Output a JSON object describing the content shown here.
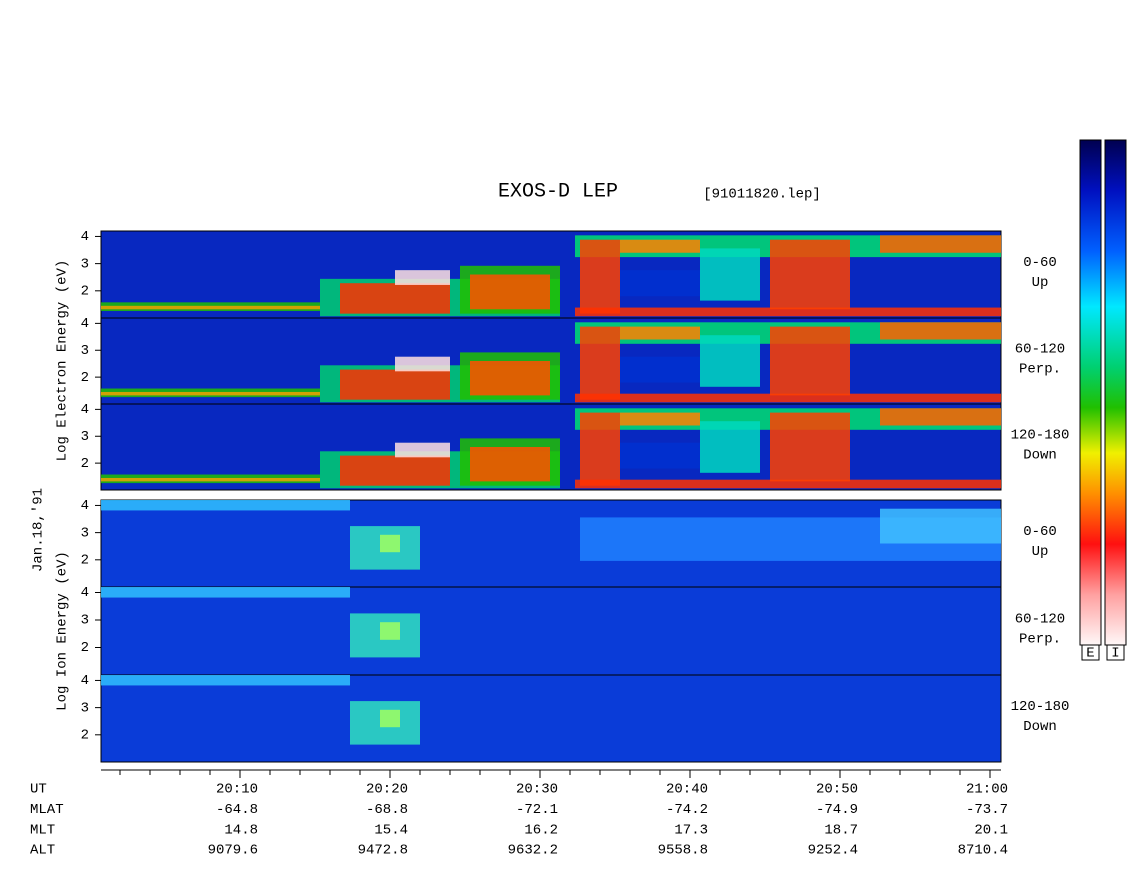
{
  "title": "EXOS-D LEP",
  "file": "[91011820.lep]",
  "date": "Jan.18,'91",
  "ylim": [
    1,
    4.2
  ],
  "yticks": [
    2,
    3,
    4
  ],
  "groups": [
    {
      "label": "Log Electron Energy (eV)",
      "panels": [
        {
          "label": "0-60",
          "sublabel": "Up"
        },
        {
          "label": "60-120",
          "sublabel": "Perp."
        },
        {
          "label": "120-180",
          "sublabel": "Down"
        }
      ]
    },
    {
      "label": "Log Ion Energy (eV)",
      "panels": [
        {
          "label": "0-60",
          "sublabel": "Up"
        },
        {
          "label": "60-120",
          "sublabel": "Perp."
        },
        {
          "label": "120-180",
          "sublabel": "Down"
        }
      ]
    }
  ],
  "orbit": {
    "rows": [
      {
        "name": "UT",
        "values": [
          "20:10",
          "20:20",
          "20:30",
          "20:40",
          "20:50",
          "21:00"
        ]
      },
      {
        "name": "MLAT",
        "values": [
          -64.8,
          -68.8,
          -72.1,
          -74.2,
          -74.9,
          -73.7
        ]
      },
      {
        "name": "MLT",
        "values": [
          14.8,
          15.4,
          16.2,
          17.3,
          18.7,
          20.1
        ]
      },
      {
        "name": "ALT",
        "values": [
          9079.6,
          9472.8,
          9632.2,
          9558.8,
          9252.4,
          8710.4
        ]
      }
    ]
  },
  "colorbars": [
    "E",
    "I"
  ]
}
